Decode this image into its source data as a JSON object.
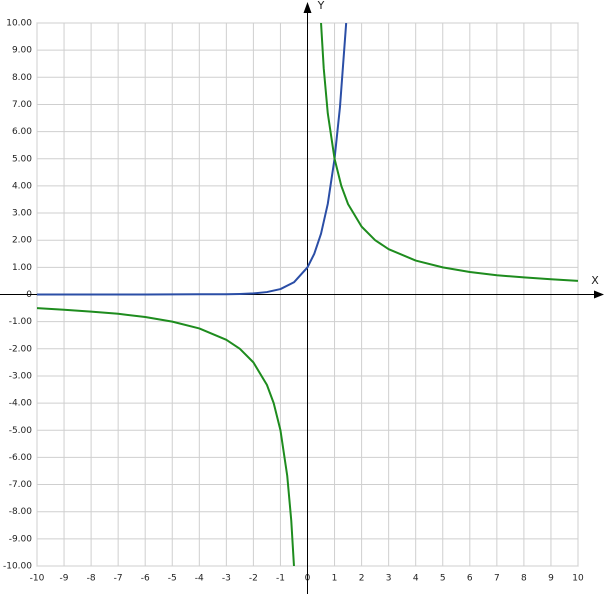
{
  "chart_data": {
    "type": "line",
    "x_label": "X",
    "y_label": "Y",
    "xlim": [
      -10,
      10
    ],
    "ylim": [
      -10,
      10
    ],
    "xticks": [
      -10,
      -9,
      -8,
      -7,
      -6,
      -5,
      -4,
      -3,
      -2,
      -1,
      0,
      1,
      2,
      3,
      4,
      5,
      6,
      7,
      8,
      9,
      10
    ],
    "yticks": [
      {
        "value": -10,
        "label": "-10.00"
      },
      {
        "value": -9,
        "label": "-9.00"
      },
      {
        "value": -8,
        "label": "-8.00"
      },
      {
        "value": -7,
        "label": "-7.00"
      },
      {
        "value": -6,
        "label": "-6.00"
      },
      {
        "value": -5,
        "label": "-5.00"
      },
      {
        "value": -4,
        "label": "-4.00"
      },
      {
        "value": -3,
        "label": "-3.00"
      },
      {
        "value": -2,
        "label": "-2.00"
      },
      {
        "value": -1,
        "label": "-1.00"
      },
      0,
      {
        "value": 1,
        "label": "1.00"
      },
      {
        "value": 2,
        "label": "2.00"
      },
      {
        "value": 3,
        "label": "3.00"
      },
      {
        "value": 4,
        "label": "4.00"
      },
      {
        "value": 5,
        "label": "5.00"
      },
      {
        "value": 6,
        "label": "6.00"
      },
      {
        "value": 7,
        "label": "7.00"
      },
      {
        "value": 8,
        "label": "8.00"
      },
      {
        "value": 9,
        "label": "9.00"
      },
      {
        "value": 10,
        "label": "10.00"
      }
    ],
    "grid": true,
    "series": [
      {
        "color": "#2b4ea6",
        "x": [
          -10,
          -8,
          -6,
          -4,
          -3,
          -2.5,
          -2,
          -1.5,
          -1,
          -0.5,
          0,
          0.25,
          0.5,
          0.75,
          1,
          1.2,
          1.43
        ],
        "values": [
          0,
          0,
          0,
          0.01,
          0.01,
          0.02,
          0.04,
          0.09,
          0.2,
          0.45,
          1,
          1.5,
          2.24,
          3.34,
          5,
          6.9,
          10
        ]
      },
      {
        "color": "#1e8c1e",
        "x": [
          -10,
          -9,
          -8,
          -7,
          -6,
          -5,
          -4,
          -3,
          -2.5,
          -2,
          -1.5,
          -1.25,
          -1,
          -0.75,
          -0.6,
          -0.5,
          0,
          0.5,
          0.6,
          0.75,
          1,
          1.25,
          1.5,
          2,
          2.5,
          3,
          4,
          5,
          6,
          7,
          8,
          9,
          10
        ],
        "values": [
          -0.5,
          -0.56,
          -0.63,
          -0.71,
          -0.83,
          -1,
          -1.25,
          -1.67,
          -2,
          -2.5,
          -3.33,
          -4,
          -5,
          -6.67,
          -8.33,
          -10,
          null,
          10,
          8.33,
          6.67,
          5,
          4,
          3.33,
          2.5,
          2,
          1.67,
          1.25,
          1,
          0.83,
          0.71,
          0.63,
          0.56,
          0.5
        ]
      }
    ]
  }
}
